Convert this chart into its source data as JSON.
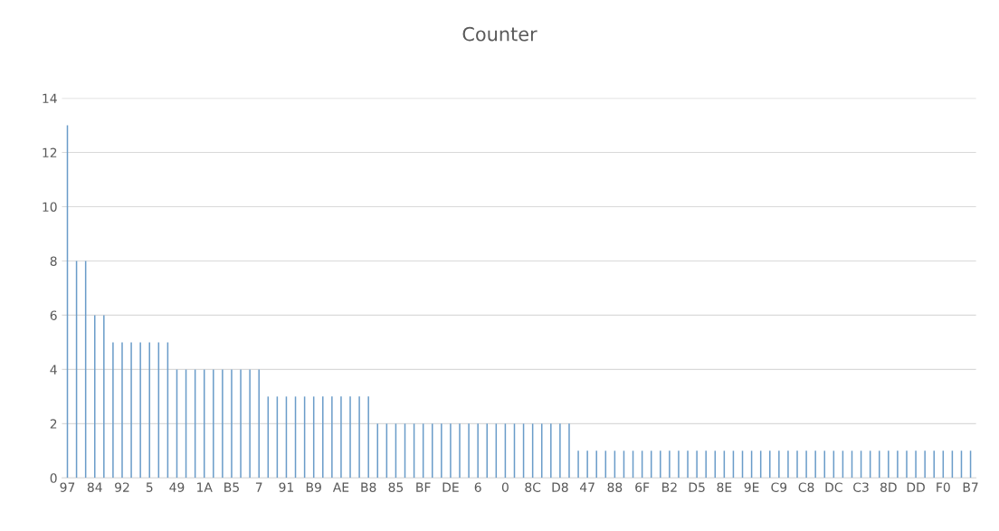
{
  "chart_data": {
    "type": "bar",
    "title": "Counter",
    "categories": [
      "97",
      null,
      null,
      "84",
      null,
      null,
      "92",
      null,
      null,
      "5",
      null,
      null,
      "49",
      null,
      null,
      "1A",
      null,
      null,
      "B5",
      null,
      null,
      "7",
      null,
      null,
      "91",
      null,
      null,
      "B9",
      null,
      null,
      "AE",
      null,
      null,
      "B8",
      null,
      null,
      "85",
      null,
      null,
      "BF",
      null,
      null,
      "DE",
      null,
      null,
      "6",
      null,
      null,
      "0",
      null,
      null,
      "8C",
      null,
      null,
      "D8",
      null,
      null,
      "47",
      null,
      null,
      "88",
      null,
      null,
      "6F",
      null,
      null,
      "B2",
      null,
      null,
      "D5",
      null,
      null,
      "8E",
      null,
      null,
      "9E",
      null,
      null,
      "C9",
      null,
      null,
      "C8",
      null,
      null,
      "DC",
      null,
      null,
      "C3",
      null,
      null,
      "8D",
      null,
      null,
      "DD",
      null,
      null,
      "F0",
      null,
      null,
      "B7"
    ],
    "values": [
      13,
      8,
      8,
      6,
      6,
      5,
      5,
      5,
      5,
      5,
      5,
      5,
      4,
      4,
      4,
      4,
      4,
      4,
      4,
      4,
      4,
      4,
      3,
      3,
      3,
      3,
      3,
      3,
      3,
      3,
      3,
      3,
      3,
      3,
      2,
      2,
      2,
      2,
      2,
      2,
      2,
      2,
      2,
      2,
      2,
      2,
      2,
      2,
      2,
      2,
      2,
      2,
      2,
      2,
      2,
      2,
      1,
      1,
      1,
      1,
      1,
      1,
      1,
      1,
      1,
      1,
      1,
      1,
      1,
      1,
      1,
      1,
      1,
      1,
      1,
      1,
      1,
      1,
      1,
      1,
      1,
      1,
      1,
      1,
      1,
      1,
      1,
      1,
      1,
      1,
      1,
      1,
      1,
      1,
      1,
      1,
      1,
      1,
      1,
      1
    ],
    "color": "#6a9cc9",
    "ylim": [
      0,
      14
    ],
    "yticks": [
      0,
      2,
      4,
      6,
      8,
      10,
      12,
      14
    ],
    "grid": "y"
  }
}
